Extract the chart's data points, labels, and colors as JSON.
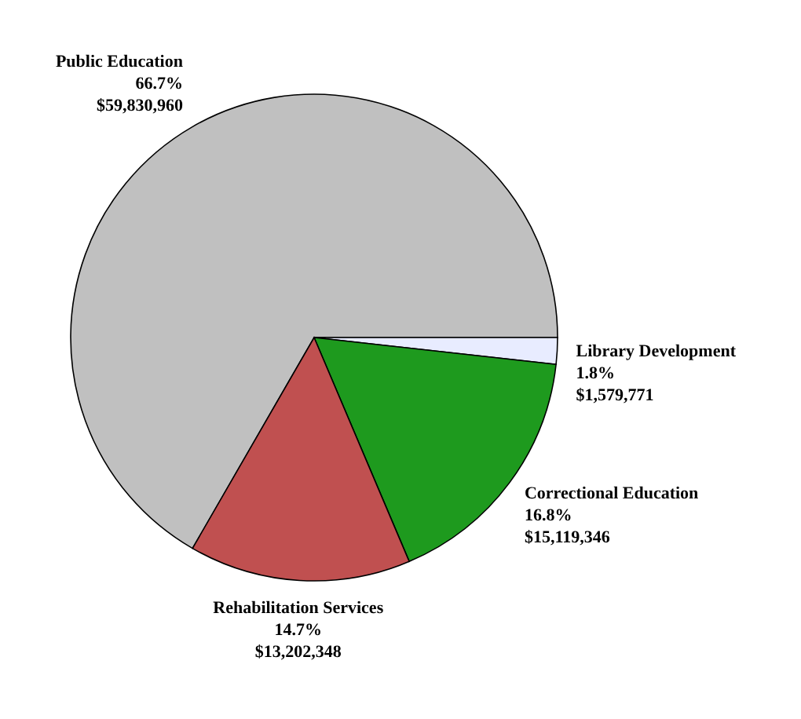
{
  "chart_data": {
    "type": "pie",
    "categories": [
      "Public Education",
      "Library Development",
      "Correctional Education",
      "Rehabilitation Services"
    ],
    "values": [
      59830960,
      1579771,
      15119346,
      13202348
    ],
    "value_labels": [
      "66.7%\n$59,830,960",
      "1.8%\n$1,579,771",
      "16.8%\n$15,119,346",
      "14.7%\n$13,202,348"
    ],
    "colors": [
      "#c0c0c0",
      "#e8ecff",
      "#1e9a1e",
      "#c05050"
    ]
  }
}
